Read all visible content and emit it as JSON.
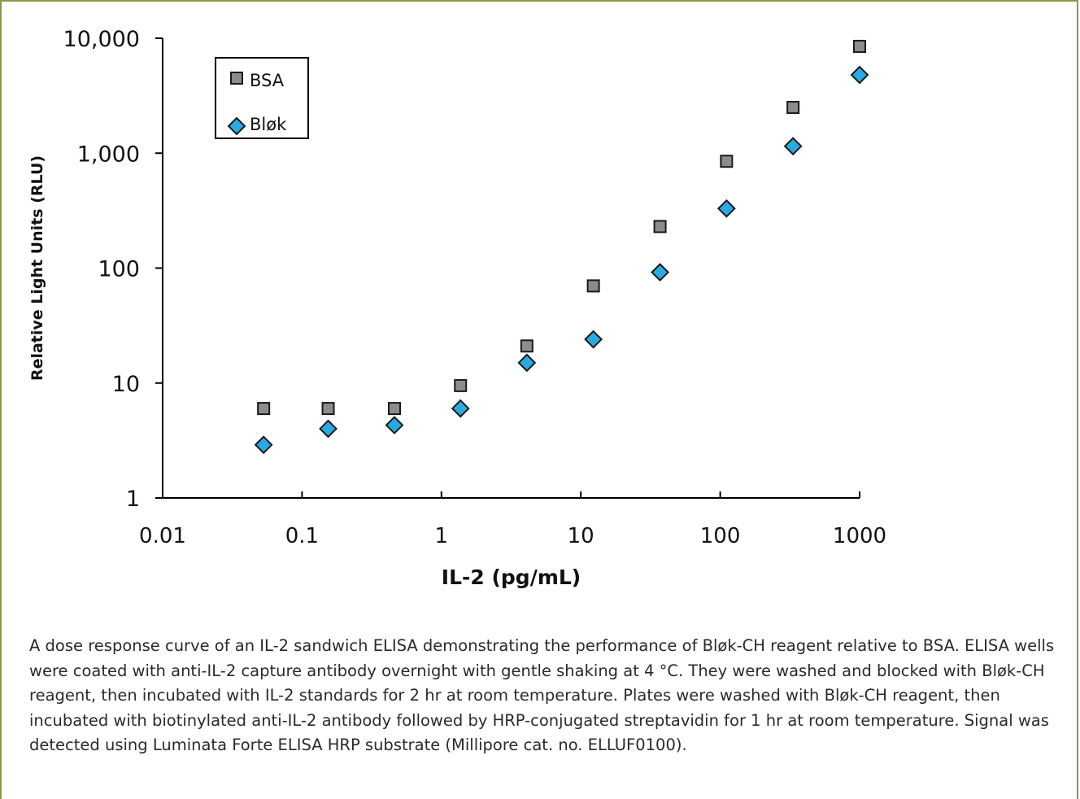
{
  "chart_data": {
    "type": "scatter",
    "title": "",
    "xlabel": "IL-2 (pg/mL)",
    "ylabel": "Relative Light Units (RLU)",
    "xscale": "log",
    "yscale": "log",
    "xlim": [
      0.01,
      1000
    ],
    "ylim": [
      1,
      10000
    ],
    "x_ticks": [
      "0.01",
      "0.1",
      "1",
      "10",
      "100",
      "1000"
    ],
    "y_ticks": [
      "1",
      "10",
      "100",
      "1,000",
      "10,000"
    ],
    "grid": false,
    "legend_position": "top-left",
    "series": [
      {
        "name": "BSA",
        "marker": "square",
        "color": "#8c8c8c",
        "x": [
          0.053,
          0.154,
          0.46,
          1.37,
          4.1,
          12.3,
          37,
          111,
          333,
          1000
        ],
        "y": [
          6,
          6,
          6,
          9.5,
          21,
          70,
          230,
          850,
          2500,
          8500
        ]
      },
      {
        "name": "Bløk",
        "marker": "diamond",
        "color": "#29aae2",
        "x": [
          0.053,
          0.154,
          0.46,
          1.37,
          4.1,
          12.3,
          37,
          111,
          333,
          1000
        ],
        "y": [
          2.9,
          4,
          4.3,
          6,
          15,
          24,
          92,
          330,
          1150,
          4800
        ]
      }
    ]
  },
  "caption": "A dose response curve of an IL-2 sandwich ELISA demonstrating the performance of Bløk-CH reagent relative to BSA. ELISA wells were coated with anti-IL-2 capture antibody overnight with gentle shaking at 4 °C. They were washed and blocked with Bløk-CH reagent, then incubated with IL-2 standards for 2 hr at room temperature. Plates were washed with Bløk-CH reagent, then incubated with biotinylated anti-IL-2 antibody followed by HRP-conjugated streptavidin for 1 hr at room temperature. Signal was detected using Luminata Forte ELISA HRP substrate (Millipore cat. no. ELLUF0100)."
}
